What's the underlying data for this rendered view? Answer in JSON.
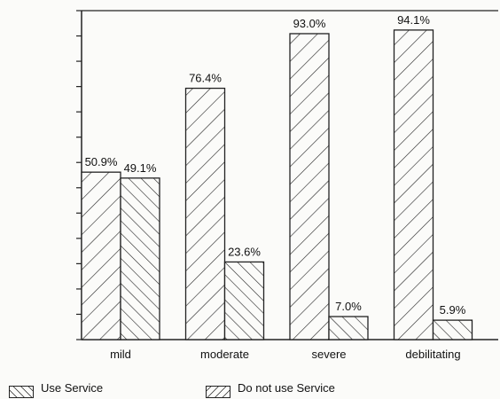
{
  "chart_data": {
    "type": "bar",
    "title": "",
    "xlabel": "",
    "ylabel": "",
    "ylim": [
      0,
      100
    ],
    "categories": [
      "mild",
      "moderate",
      "severe",
      "debilitating"
    ],
    "series": [
      {
        "name": "Use Service",
        "values": [
          50.9,
          76.4,
          93.0,
          94.1
        ],
        "labels": [
          "50.9%",
          "76.4%",
          "93.0%",
          "94.1%"
        ],
        "pattern": "backslash-hatch"
      },
      {
        "name": "Do not use Service",
        "values": [
          49.1,
          23.6,
          7.0,
          5.9
        ],
        "labels": [
          "49.1%",
          "23.6%",
          "7.0%",
          "5.9%"
        ],
        "pattern": "forward-slash-hatch"
      }
    ],
    "grid": false,
    "legend_position": "bottom",
    "colors": {
      "stroke": "#222222",
      "background": "#fbfbf9"
    }
  }
}
